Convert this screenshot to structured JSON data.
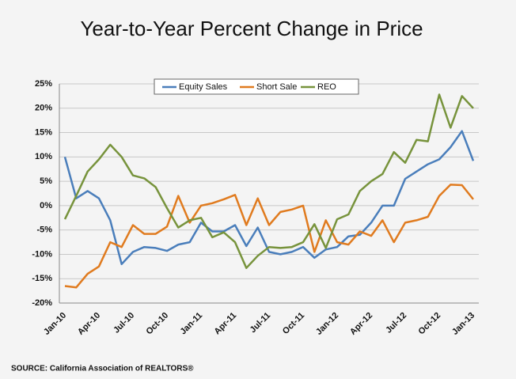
{
  "chart_data": {
    "type": "line",
    "title": "Year-to-Year Percent Change in Price",
    "source": "SOURCE: California Association of REALTORS®",
    "categories": [
      "Jan-10",
      null,
      null,
      "Apr-10",
      null,
      null,
      "Jul-10",
      null,
      null,
      "Oct-10",
      null,
      null,
      "Jan-11",
      null,
      null,
      "Apr-11",
      null,
      null,
      "Jul-11",
      null,
      null,
      "Oct-11",
      null,
      null,
      "Jan-12",
      null,
      null,
      "Apr-12",
      null,
      null,
      "Jul-12",
      null,
      null,
      "Oct-12",
      null,
      null,
      "Jan-13"
    ],
    "series": [
      {
        "name": "Equity Sales",
        "color": "#4a7ebb",
        "values": [
          10,
          1.5,
          3,
          1.5,
          -3,
          -12,
          -9.5,
          -8.5,
          -8.7,
          -9.3,
          -8,
          -7.5,
          -3.5,
          -5.3,
          -5.3,
          -4,
          -8.3,
          -4.5,
          -9.5,
          -10,
          -9.5,
          -8.5,
          -10.7,
          -9,
          -8.5,
          -6.3,
          -6,
          -3.5,
          0,
          0,
          5.5,
          7,
          8.5,
          9.5,
          12,
          15.3,
          9.2
        ]
      },
      {
        "name": "Short Sale",
        "color": "#e07b1f",
        "values": [
          -16.5,
          -16.8,
          -14,
          -12.5,
          -7.5,
          -8.5,
          -4,
          -5.8,
          -5.8,
          -4.3,
          2,
          -3.5,
          0,
          0.5,
          1.3,
          2.2,
          -4,
          1.5,
          -4,
          -1.3,
          -0.8,
          0,
          -9.5,
          -3,
          -7.5,
          -8,
          -5.3,
          -6.2,
          -3,
          -7.5,
          -3.5,
          -3,
          -2.3,
          2,
          4.3,
          4.2,
          1.3
        ]
      },
      {
        "name": "REO",
        "color": "#77933c",
        "values": [
          -2.8,
          2,
          7,
          9.5,
          12.5,
          10,
          6.2,
          5.6,
          3.8,
          -0.5,
          -4.5,
          -3,
          -2.5,
          -6.5,
          -5.5,
          -7.5,
          -12.8,
          -10.3,
          -8.5,
          -8.7,
          -8.5,
          -7.5,
          -3.8,
          -8.7,
          -2.8,
          -1.8,
          3,
          5,
          6.5,
          11,
          8.8,
          13.5,
          13.2,
          22.8,
          16,
          22.5,
          20
        ]
      }
    ],
    "ylim": [
      -20,
      25
    ],
    "yticks": [
      {
        "value": -20,
        "label": "-20%"
      },
      {
        "value": -15,
        "label": "-15%"
      },
      {
        "value": -10,
        "label": "-10%"
      },
      {
        "value": -5,
        "label": "-5%"
      },
      {
        "value": 0,
        "label": "0%"
      },
      {
        "value": 5,
        "label": "5%"
      },
      {
        "value": 10,
        "label": "10%"
      },
      {
        "value": 15,
        "label": "15%"
      },
      {
        "value": 20,
        "label": "20%"
      },
      {
        "value": 25,
        "label": "25%"
      }
    ],
    "grid": true
  }
}
